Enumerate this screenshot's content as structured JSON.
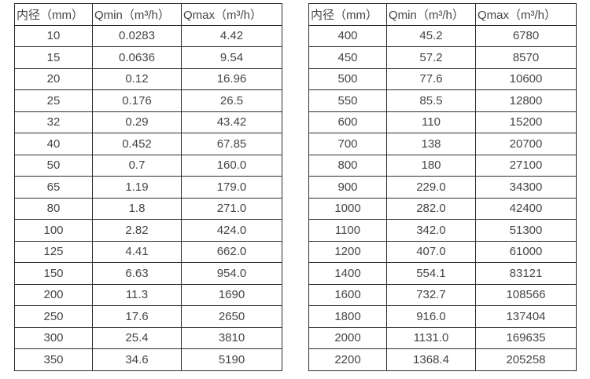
{
  "tables": [
    {
      "name": "small-diameter-flow-table",
      "headers": [
        "内径（mm）",
        "Qmin（m³/h）",
        "Qmax（m³/h）"
      ],
      "rows": [
        [
          "10",
          "0.0283",
          "4.42"
        ],
        [
          "15",
          "0.0636",
          "9.54"
        ],
        [
          "20",
          "0.12",
          "16.96"
        ],
        [
          "25",
          "0.176",
          "26.5"
        ],
        [
          "32",
          "0.29",
          "43.42"
        ],
        [
          "40",
          "0.452",
          "67.85"
        ],
        [
          "50",
          "0.7",
          "160.0"
        ],
        [
          "65",
          "1.19",
          "179.0"
        ],
        [
          "80",
          "1.8",
          "271.0"
        ],
        [
          "100",
          "2.82",
          "424.0"
        ],
        [
          "125",
          "4.41",
          "662.0"
        ],
        [
          "150",
          "6.63",
          "954.0"
        ],
        [
          "200",
          "11.3",
          "1690"
        ],
        [
          "250",
          "17.6",
          "2650"
        ],
        [
          "300",
          "25.4",
          "3810"
        ],
        [
          "350",
          "34.6",
          "5190"
        ]
      ]
    },
    {
      "name": "large-diameter-flow-table",
      "headers": [
        "内径（mm）",
        "Qmin（m³/h）",
        "Qmax（m³/h）"
      ],
      "rows": [
        [
          "400",
          "45.2",
          "6780"
        ],
        [
          "450",
          "57.2",
          "8570"
        ],
        [
          "500",
          "77.6",
          "10600"
        ],
        [
          "550",
          "85.5",
          "12800"
        ],
        [
          "600",
          "110",
          "15200"
        ],
        [
          "700",
          "138",
          "20700"
        ],
        [
          "800",
          "180",
          "27100"
        ],
        [
          "900",
          "229.0",
          "34300"
        ],
        [
          "1000",
          "282.0",
          "42400"
        ],
        [
          "1100",
          "342.0",
          "51300"
        ],
        [
          "1200",
          "407.0",
          "61000"
        ],
        [
          "1400",
          "554.1",
          "83121"
        ],
        [
          "1600",
          "732.7",
          "108566"
        ],
        [
          "1800",
          "916.0",
          "137404"
        ],
        [
          "2000",
          "1131.0",
          "169635"
        ],
        [
          "2200",
          "1368.4",
          "205258"
        ]
      ]
    }
  ],
  "cell_names": [
    "cell-diameter",
    "cell-qmin",
    "cell-qmax"
  ],
  "colors": {
    "border": "#2d2d2d",
    "text": "#454545",
    "background": "#ffffff"
  }
}
